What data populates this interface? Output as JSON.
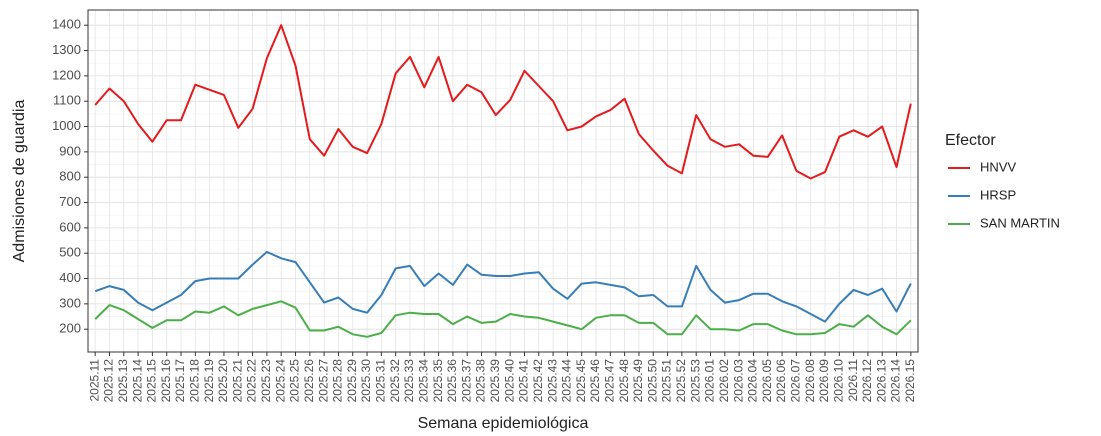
{
  "chart_data": {
    "type": "line",
    "x_label": "Semana epidemiológica",
    "y_label": "Admisiones de guardia",
    "legend_title": "Efector",
    "legend_position": "right",
    "grid": true,
    "ylim": [
      110,
      1460
    ],
    "yticks": [
      200,
      300,
      400,
      500,
      600,
      700,
      800,
      900,
      1000,
      1100,
      1200,
      1300,
      1400
    ],
    "categories": [
      "2025.11",
      "2025.12",
      "2025.13",
      "2025.14",
      "2025.15",
      "2025.16",
      "2025.17",
      "2025.18",
      "2025.19",
      "2025.20",
      "2025.21",
      "2025.22",
      "2025.23",
      "2025.24",
      "2025.25",
      "2025.26",
      "2025.27",
      "2025.28",
      "2025.29",
      "2025.30",
      "2025.31",
      "2025.32",
      "2025.33",
      "2025.34",
      "2025.35",
      "2025.36",
      "2025.37",
      "2025.38",
      "2025.39",
      "2025.40",
      "2025.41",
      "2025.42",
      "2025.43",
      "2025.44",
      "2025.45",
      "2025.46",
      "2025.47",
      "2025.48",
      "2025.49",
      "2025.50",
      "2025.51",
      "2025.52",
      "2025.53",
      "2026.01",
      "2026.02",
      "2026.03",
      "2026.04",
      "2026.05",
      "2026.06",
      "2026.07",
      "2026.08",
      "2026.09",
      "2026.10",
      "2026.11",
      "2026.12",
      "2026.13",
      "2026.14",
      "2026.15"
    ],
    "series": [
      {
        "name": "HNVV",
        "color": "#e41a1c",
        "values": [
          1085,
          1150,
          1100,
          1010,
          940,
          1025,
          1025,
          1165,
          1145,
          1125,
          995,
          1070,
          1270,
          1400,
          1240,
          950,
          885,
          990,
          920,
          895,
          1010,
          1210,
          1275,
          1155,
          1275,
          1100,
          1165,
          1135,
          1045,
          1105,
          1220,
          1160,
          1100,
          985,
          1000,
          1040,
          1065,
          1110,
          970,
          905,
          845,
          815,
          1045,
          950,
          920,
          930,
          885,
          880,
          965,
          825,
          795,
          820,
          960,
          985,
          960,
          1000,
          840,
          1090
        ]
      },
      {
        "name": "HRSP",
        "color": "#377eb8",
        "values": [
          350,
          370,
          355,
          305,
          275,
          305,
          335,
          390,
          400,
          400,
          400,
          455,
          505,
          480,
          465,
          385,
          305,
          325,
          280,
          265,
          335,
          440,
          450,
          370,
          420,
          375,
          455,
          415,
          410,
          410,
          420,
          425,
          360,
          320,
          380,
          385,
          375,
          365,
          330,
          335,
          290,
          290,
          450,
          355,
          305,
          315,
          340,
          340,
          310,
          290,
          260,
          230,
          300,
          355,
          335,
          360,
          270,
          380
        ]
      },
      {
        "name": "SAN MARTIN",
        "color": "#4daf4a",
        "values": [
          240,
          295,
          275,
          240,
          205,
          235,
          235,
          270,
          265,
          290,
          255,
          280,
          295,
          310,
          285,
          195,
          195,
          210,
          180,
          170,
          185,
          255,
          265,
          260,
          260,
          220,
          250,
          225,
          230,
          260,
          250,
          245,
          230,
          215,
          200,
          245,
          255,
          255,
          225,
          225,
          180,
          180,
          255,
          200,
          200,
          195,
          220,
          220,
          195,
          180,
          180,
          185,
          220,
          210,
          255,
          210,
          180,
          235
        ]
      }
    ]
  }
}
